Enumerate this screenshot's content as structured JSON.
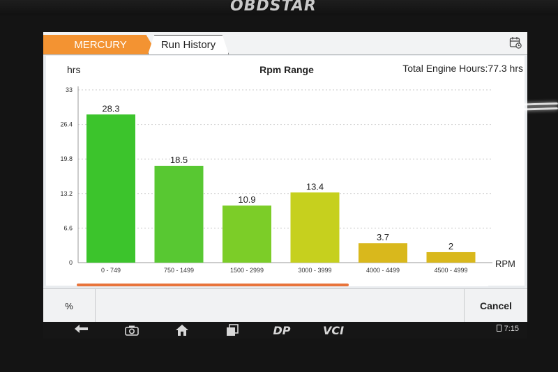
{
  "brand": {
    "logo_text": "OBDSTAR"
  },
  "tabs": [
    {
      "label": "MERCURY",
      "active": true
    },
    {
      "label": "Run History",
      "active": false
    }
  ],
  "header": {
    "ylabel": "hrs",
    "title": "Rpm Range",
    "total_hours": "Total Engine Hours:77.3 hrs"
  },
  "chart_data": {
    "type": "bar",
    "title": "Rpm Range",
    "ylabel": "hrs",
    "xlabel": "RPM",
    "categories": [
      "0 - 749",
      "750 - 1499",
      "1500 - 2999",
      "3000 - 3999",
      "4000 - 4499",
      "4500 - 4999"
    ],
    "values": [
      28.3,
      18.5,
      10.9,
      13.4,
      3.7,
      2
    ],
    "value_labels": [
      "28.3",
      "18.5",
      "10.9",
      "13.4",
      "3.7",
      "2"
    ],
    "colors": [
      "#3cc42c",
      "#58c832",
      "#7ccd28",
      "#c6d01e",
      "#d9b81c",
      "#d9b81c"
    ],
    "yticks": [
      "0",
      "6.6",
      "13.2",
      "19.8",
      "26.4",
      "33"
    ],
    "ytick_values": [
      0,
      6.6,
      13.2,
      19.8,
      26.4,
      33
    ],
    "ylim": [
      0,
      33
    ],
    "grid": true
  },
  "bottom": {
    "percent_label": "%",
    "cancel_label": "Cancel"
  },
  "navbar": {
    "items": [
      {
        "name": "back-icon",
        "glyph": "↩"
      },
      {
        "name": "camera-icon",
        "glyph": "📷"
      },
      {
        "name": "home-icon",
        "glyph": "⌂"
      },
      {
        "name": "recent-apps-icon",
        "glyph": "❐"
      },
      {
        "name": "dp-icon",
        "text": "DP"
      },
      {
        "name": "vci-icon",
        "text": "VCI"
      }
    ],
    "time": "7:15"
  }
}
